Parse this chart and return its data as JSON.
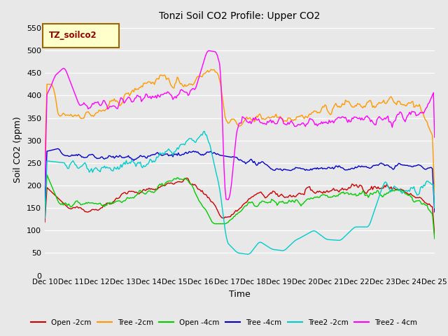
{
  "title": "Tonzi Soil CO2 Profile: Upper CO2",
  "xlabel": "Time",
  "ylabel": "Soil CO2 (ppm)",
  "ylim": [
    0,
    560
  ],
  "yticks": [
    0,
    50,
    100,
    150,
    200,
    250,
    300,
    350,
    400,
    450,
    500,
    550
  ],
  "legend_label": "TZ_soilco2",
  "series_labels": [
    "Open -2cm",
    "Tree -2cm",
    "Open -4cm",
    "Tree -4cm",
    "Tree2 -2cm",
    "Tree2 - 4cm"
  ],
  "series_colors": [
    "#cc0000",
    "#ff9900",
    "#00cc00",
    "#0000cc",
    "#00cccc",
    "#ff00ff"
  ],
  "fig_bg_color": "#e8e8e8",
  "plot_bg_color": "#e8e8e8",
  "grid_color": "#ffffff",
  "legend_box_face": "#ffffcc",
  "legend_box_edge": "#996600",
  "legend_text_color": "#990000",
  "n_points": 360,
  "xtick_labels": [
    "Dec 10",
    "Dec 11",
    "Dec 12",
    "Dec 13",
    "Dec 14",
    "Dec 15",
    "Dec 16",
    "Dec 17",
    "Dec 18",
    "Dec 19",
    "Dec 20",
    "Dec 21",
    "Dec 22",
    "Dec 23",
    "Dec 24",
    "Dec 25"
  ]
}
